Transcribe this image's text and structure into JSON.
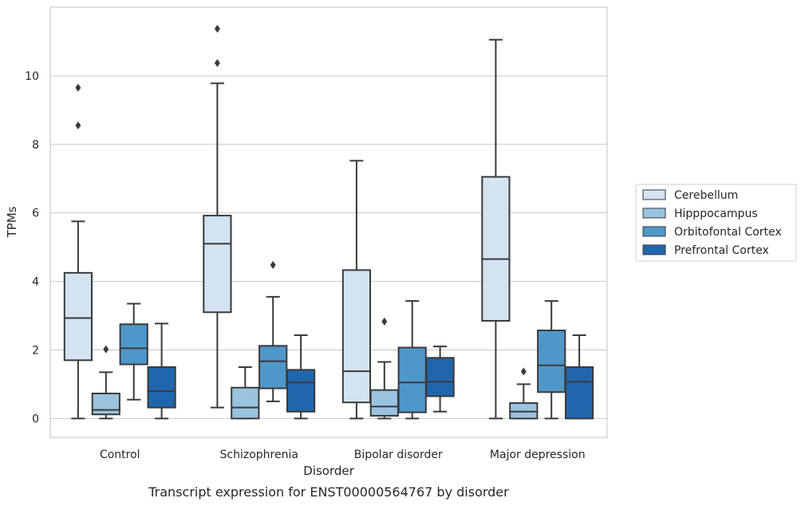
{
  "caption": "Transcript expression for ENST00000564767 by disorder",
  "chart_data": {
    "type": "box",
    "xlabel": "Disorder",
    "ylabel": "TPMs",
    "ylim": [
      -0.55,
      12.0
    ],
    "yticks": [
      0,
      2,
      4,
      6,
      8,
      10
    ],
    "grid": "horizontal",
    "legend_position": "right",
    "categories": [
      "Control",
      "Schizophrenia",
      "Bipolar disorder",
      "Major depression"
    ],
    "series": [
      {
        "name": "Cerebellum",
        "color": "#d3e3f2",
        "boxes": [
          {
            "whislo": 0.0,
            "q1": 1.7,
            "med": 2.93,
            "q3": 4.25,
            "whishi": 5.75,
            "fliers": [
              8.55,
              9.65
            ]
          },
          {
            "whislo": 0.32,
            "q1": 3.1,
            "med": 5.1,
            "q3": 5.92,
            "whishi": 9.78,
            "fliers": [
              10.37,
              11.37
            ]
          },
          {
            "whislo": 0.0,
            "q1": 0.47,
            "med": 1.38,
            "q3": 4.33,
            "whishi": 7.52,
            "fliers": []
          },
          {
            "whislo": 0.0,
            "q1": 2.85,
            "med": 4.65,
            "q3": 7.05,
            "whishi": 11.05,
            "fliers": []
          }
        ]
      },
      {
        "name": "Hipppocampus",
        "color": "#9ac3df",
        "boxes": [
          {
            "whislo": 0.0,
            "q1": 0.12,
            "med": 0.25,
            "q3": 0.73,
            "whishi": 1.35,
            "fliers": [
              2.02
            ]
          },
          {
            "whislo": 0.0,
            "q1": 0.0,
            "med": 0.32,
            "q3": 0.9,
            "whishi": 1.5,
            "fliers": []
          },
          {
            "whislo": 0.0,
            "q1": 0.08,
            "med": 0.35,
            "q3": 0.83,
            "whishi": 1.65,
            "fliers": [
              2.83
            ]
          },
          {
            "whislo": 0.0,
            "q1": 0.0,
            "med": 0.2,
            "q3": 0.45,
            "whishi": 1.0,
            "fliers": [
              1.37
            ]
          }
        ]
      },
      {
        "name": "Orbitofontal Cortex",
        "color": "#5097c9",
        "boxes": [
          {
            "whislo": 0.55,
            "q1": 1.58,
            "med": 2.05,
            "q3": 2.75,
            "whishi": 3.35,
            "fliers": []
          },
          {
            "whislo": 0.5,
            "q1": 0.88,
            "med": 1.67,
            "q3": 2.12,
            "whishi": 3.55,
            "fliers": [
              4.48
            ]
          },
          {
            "whislo": 0.0,
            "q1": 0.18,
            "med": 1.05,
            "q3": 2.07,
            "whishi": 3.43,
            "fliers": []
          },
          {
            "whislo": 0.0,
            "q1": 0.77,
            "med": 1.55,
            "q3": 2.57,
            "whishi": 3.43,
            "fliers": []
          }
        ]
      },
      {
        "name": "Prefrontal Cortex",
        "color": "#2066ac",
        "boxes": [
          {
            "whislo": 0.0,
            "q1": 0.32,
            "med": 0.8,
            "q3": 1.5,
            "whishi": 2.77,
            "fliers": []
          },
          {
            "whislo": 0.0,
            "q1": 0.2,
            "med": 1.05,
            "q3": 1.42,
            "whishi": 2.43,
            "fliers": []
          },
          {
            "whislo": 0.2,
            "q1": 0.65,
            "med": 1.07,
            "q3": 1.77,
            "whishi": 2.1,
            "fliers": []
          },
          {
            "whislo": 0.0,
            "q1": 0.0,
            "med": 1.07,
            "q3": 1.5,
            "whishi": 2.43,
            "fliers": []
          }
        ]
      }
    ]
  }
}
